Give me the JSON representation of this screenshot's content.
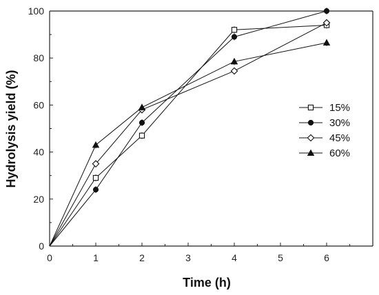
{
  "chart_data": {
    "type": "line",
    "xlabel": "Time (h)",
    "ylabel": "Hydrolysis yield (%)",
    "xlim": [
      0,
      7
    ],
    "ylim": [
      0,
      100
    ],
    "x_ticks": [
      "0",
      "1",
      "2",
      "3",
      "4",
      "5",
      "6"
    ],
    "y_ticks": [
      "0",
      "20",
      "40",
      "60",
      "80",
      "100"
    ],
    "legend_position": "right",
    "grid": false,
    "series": [
      {
        "name": "15%",
        "marker": "open-square",
        "x": [
          0,
          1,
          2,
          4,
          6
        ],
        "y": [
          0,
          29,
          47,
          92,
          94
        ]
      },
      {
        "name": "30%",
        "marker": "filled-circle",
        "x": [
          0,
          1,
          2,
          4,
          6
        ],
        "y": [
          0,
          24,
          52.5,
          89,
          100
        ]
      },
      {
        "name": "45%",
        "marker": "open-diamond",
        "x": [
          0,
          1,
          2,
          4,
          6
        ],
        "y": [
          0,
          35,
          58,
          74.5,
          95
        ]
      },
      {
        "name": "60%",
        "marker": "filled-triangle",
        "x": [
          0,
          1,
          2,
          4,
          6
        ],
        "y": [
          0,
          43,
          59,
          78.5,
          86.5
        ]
      }
    ]
  }
}
